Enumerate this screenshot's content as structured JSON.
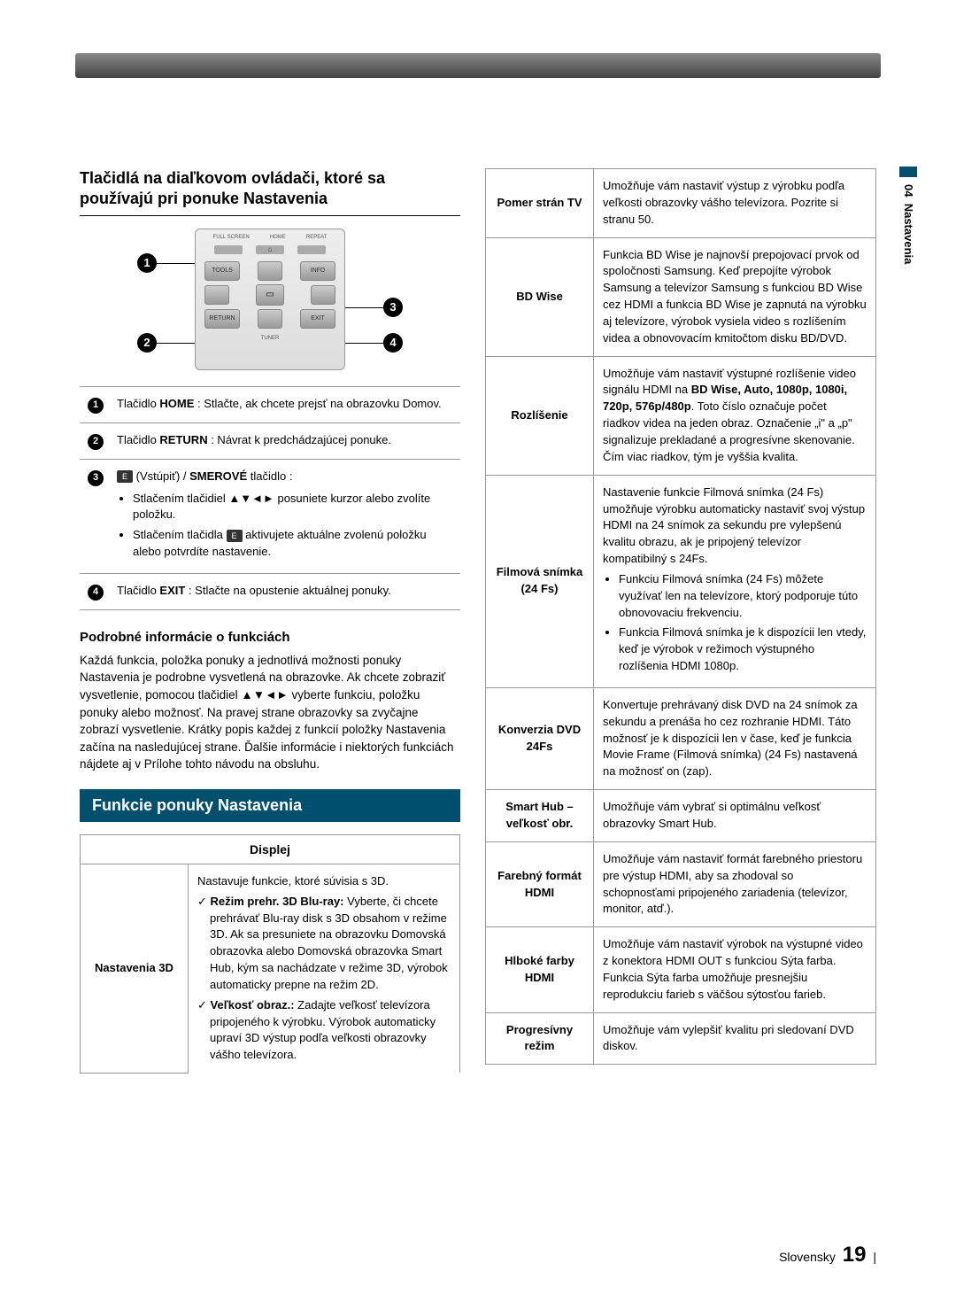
{
  "sideTab": {
    "chapter": "04",
    "title": "Nastavenia"
  },
  "left": {
    "heading": "Tlačidlá na diaľkovom ovládači, ktoré sa používajú pri ponuke Nastavenia",
    "remoteLabels": {
      "full": "FULL SCREEN",
      "home": "HOME",
      "repeat": "REPEAT",
      "tools": "TOOLS",
      "info": "INFO",
      "return": "RETURN",
      "exit": "EXIT",
      "tuner": "TUNER"
    },
    "bubbles": {
      "b1": "1",
      "b2": "2",
      "b3": "3",
      "b4": "4"
    },
    "btnTable": {
      "r1": {
        "num": "1",
        "pre": "Tlačidlo ",
        "bold": "HOME",
        "post": " : Stlačte, ak chcete prejsť na obrazovku Domov."
      },
      "r2": {
        "num": "2",
        "pre": "Tlačidlo ",
        "bold": "RETURN",
        "post": " : Návrat k predchádzajúcej ponuke."
      },
      "r3": {
        "num": "3",
        "headPre": " (Vstúpiť) / ",
        "headBold": "SMEROVÉ",
        "headPost": " tlačidlo :",
        "li1a": "Stlačením tlačidiel ▲▼◄► posuniete kurzor alebo zvolíte položku.",
        "li2a": "Stlačením tlačidla ",
        "li2b": " aktivujete aktuálne zvolenú položku alebo potvrdíte nastavenie."
      },
      "r4": {
        "num": "4",
        "pre": "Tlačidlo ",
        "bold": "EXIT",
        "post": " : Stlačte na opustenie aktuálnej ponuky."
      }
    },
    "subhead": "Podrobné informácie o funkciách",
    "bodyText": "Každá funkcia, položka ponuky a jednotlivá možnosti ponuky Nastavenia je podrobne vysvetlená na obrazovke. Ak chcete zobraziť vysvetlenie, pomocou tlačidiel ▲▼◄► vyberte funkciu, položku ponuky alebo možnosť. Na pravej strane obrazovky sa zvyčajne zobrazí vysvetlenie. Krátky popis každej z funkcií položky Nastavenia začína na nasledujúcej strane. Ďalšie informácie i niektorých funkciách nájdete aj v Prílohe tohto návodu na obsluhu.",
    "sectionBar": "Funkcie ponuky Nastavenia",
    "dispTable": {
      "header": "Displej",
      "row1": {
        "label": "Nastavenia 3D",
        "intro": "Nastavuje funkcie, ktoré súvisia s 3D.",
        "i1bold": "Režim prehr. 3D Blu-ray:",
        "i1": " Vyberte, či chcete prehrávať Blu-ray disk s 3D obsahom v režime 3D. Ak sa presuniete na obrazovku Domovská obrazovka alebo Domovská obrazovka Smart Hub, kým sa nachádzate v režime 3D, výrobok automaticky prepne na režim 2D.",
        "i2bold": "Veľkosť obraz.:",
        "i2": " Zadajte veľkosť televízora pripojeného k výrobku. Výrobok automaticky upraví 3D výstup podľa veľkosti obrazovky vášho televízora."
      }
    }
  },
  "right": {
    "rows": [
      {
        "label": "Pomer strán TV",
        "desc": "Umožňuje vám nastaviť výstup z výrobku podľa veľkosti obrazovky vášho televízora. Pozrite si stranu 50."
      },
      {
        "label": "BD Wise",
        "desc": "Funkcia BD Wise je najnovší prepojovací prvok od spoločnosti Samsung. Keď prepojíte výrobok Samsung a televízor Samsung s funkciou BD Wise cez HDMI a funkcia BD Wise je zapnutá na výrobku aj televízore, výrobok vysiela video s rozlíšením videa a obnovovacím kmitočtom disku BD/DVD."
      },
      {
        "label": "Rozlíšenie",
        "descPre": "Umožňuje vám nastaviť výstupné rozlíšenie video signálu HDMI na ",
        "descBold": "BD Wise, Auto, 1080p, 1080i, 720p, 576p/480p",
        "descPost": ". Toto číslo označuje počet riadkov videa na jeden obraz. Označenie „i\" a „p\" signalizuje prekladané a progresívne skenovanie. Čím viac riadkov, tým je vyššia kvalita."
      },
      {
        "label": "Filmová snímka (24 Fs)",
        "intro": "Nastavenie funkcie Filmová snímka (24 Fs) umožňuje výrobku automaticky nastaviť svoj výstup HDMI na 24 snímok za sekundu pre vylepšenú kvalitu obrazu, ak je pripojený televízor kompatibilný s 24Fs.",
        "li1": "Funkciu Filmová snímka (24 Fs) môžete využívať len na televízore, ktorý podporuje túto obnovovaciu frekvenciu.",
        "li2": "Funkcia Filmová snímka je k dispozícii len vtedy, keď je výrobok v režimoch výstupného rozlíšenia HDMI 1080p."
      },
      {
        "label": "Konverzia DVD 24Fs",
        "desc": "Konvertuje prehrávaný disk DVD na 24 snímok za sekundu a prenáša ho cez rozhranie HDMI. Táto možnosť je k dispozícii len v čase, keď je funkcia Movie Frame (Filmová snímka) (24 Fs) nastavená na možnosť on (zap)."
      },
      {
        "label": "Smart Hub – veľkosť obr.",
        "desc": "Umožňuje vám vybrať si optimálnu veľkosť obrazovky Smart Hub."
      },
      {
        "label": "Farebný formát HDMI",
        "desc": "Umožňuje vám nastaviť formát farebného priestoru pre výstup HDMI, aby sa zhodoval so schopnosťami pripojeného zariadenia (televízor, monitor, atď.)."
      },
      {
        "label": "Hlboké farby HDMI",
        "desc": "Umožňuje vám nastaviť výrobok na výstupné video z konektora HDMI OUT s funkciou Sýta farba. Funkcia Sýta farba umožňuje presnejšiu reprodukciu farieb s väčšou sýtosťou farieb."
      },
      {
        "label": "Progresívny režim",
        "desc": "Umožňuje vám vylepšiť kvalitu pri sledovaní DVD diskov."
      }
    ]
  },
  "footer": {
    "lang": "Slovensky",
    "page": "19"
  }
}
